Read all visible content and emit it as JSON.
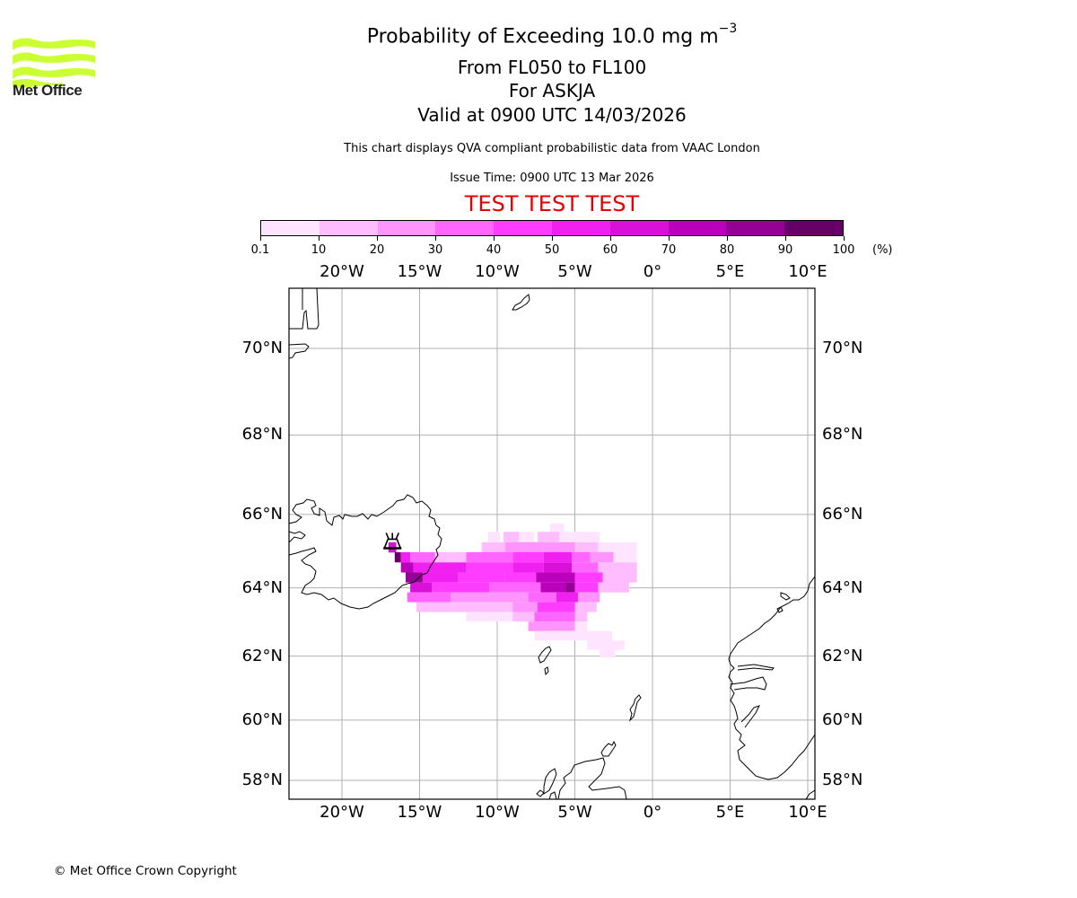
{
  "header": {
    "title_prefix": "Probability of Exceeding 10.0 mg m",
    "title_superscript": "−3",
    "flight_levels": "From FL050 to FL100",
    "volcano": "For ASKJA",
    "valid_time": "Valid at 0900 UTC 14/03/2026",
    "subtitle": "This chart displays QVA compliant probabilistic data from VAAC London",
    "issue_time": "Issue Time: 0900 UTC 13 Mar 2026",
    "test_banner": "TEST TEST TEST",
    "test_color": "#e60000"
  },
  "logo": {
    "text": "Met Office",
    "icon": "met-office-waves-logo",
    "color": "#ccff33"
  },
  "colorbar": {
    "unit": "(%)",
    "tick_labels": [
      "0.1",
      "10",
      "20",
      "30",
      "40",
      "50",
      "60",
      "70",
      "80",
      "90",
      "100"
    ],
    "colors": [
      "#ffe4ff",
      "#ffbcff",
      "#ff94ff",
      "#ff66ff",
      "#ff3cff",
      "#f020f0",
      "#d810d8",
      "#bb00bb",
      "#950095",
      "#660066"
    ]
  },
  "map": {
    "projection": "mercator",
    "lon_range": [
      -23.5,
      10.5
    ],
    "lat_range": [
      57.4,
      71.3
    ],
    "gridlines": true,
    "lon_ticks": [
      {
        "lon": -20,
        "label": "20°W"
      },
      {
        "lon": -15,
        "label": "15°W"
      },
      {
        "lon": -10,
        "label": "10°W"
      },
      {
        "lon": -5,
        "label": "5°W"
      },
      {
        "lon": 0,
        "label": "0°"
      },
      {
        "lon": 5,
        "label": "5°E"
      },
      {
        "lon": 10,
        "label": "10°E"
      }
    ],
    "lat_ticks": [
      {
        "lat": 70,
        "label": "70°N"
      },
      {
        "lat": 68,
        "label": "68°N"
      },
      {
        "lat": 66,
        "label": "66°N"
      },
      {
        "lat": 64,
        "label": "64°N"
      },
      {
        "lat": 62,
        "label": "62°N"
      },
      {
        "lat": 60,
        "label": "60°N"
      },
      {
        "lat": 58,
        "label": "58°N"
      }
    ],
    "volcano": {
      "name": "ASKJA",
      "lon": -16.75,
      "lat": 65.05,
      "icon": "volcano-icon"
    },
    "plume_cell_height_deg": 0.28,
    "plume_rows": [
      {
        "lat": 65.62,
        "runs": [
          [
            -6.6,
            -5.7,
            5
          ]
        ]
      },
      {
        "lat": 65.4,
        "runs": [
          [
            -10.6,
            -9.8,
            5
          ],
          [
            -9.6,
            -8.6,
            15
          ],
          [
            -8.6,
            -7.6,
            5
          ],
          [
            -7.4,
            -6.0,
            15
          ],
          [
            -6.0,
            -5.2,
            5
          ],
          [
            -5.2,
            -3.4,
            5
          ]
        ]
      },
      {
        "lat": 65.12,
        "runs": [
          [
            -17.0,
            -16.5,
            65
          ],
          [
            -11.0,
            -9.5,
            15
          ],
          [
            -9.5,
            -7.0,
            20
          ],
          [
            -7.0,
            -5.0,
            25
          ],
          [
            -5.0,
            -3.5,
            15
          ],
          [
            -3.5,
            -1.0,
            5
          ]
        ]
      },
      {
        "lat": 64.85,
        "runs": [
          [
            -16.6,
            -16.2,
            95
          ],
          [
            -16.2,
            -15.6,
            55
          ],
          [
            -15.6,
            -14.0,
            35
          ],
          [
            -14.0,
            -12.0,
            15
          ],
          [
            -12.0,
            -9.0,
            35
          ],
          [
            -9.0,
            -7.0,
            45
          ],
          [
            -7.0,
            -5.2,
            55
          ],
          [
            -5.2,
            -4.0,
            35
          ],
          [
            -4.0,
            -2.5,
            25
          ],
          [
            -2.5,
            -1.0,
            5
          ]
        ]
      },
      {
        "lat": 64.57,
        "runs": [
          [
            -16.2,
            -15.4,
            75
          ],
          [
            -15.4,
            -12.0,
            55
          ],
          [
            -12.0,
            -9.0,
            45
          ],
          [
            -9.0,
            -7.0,
            55
          ],
          [
            -7.0,
            -5.2,
            65
          ],
          [
            -5.2,
            -3.5,
            35
          ],
          [
            -3.5,
            -1.0,
            15
          ]
        ]
      },
      {
        "lat": 64.29,
        "runs": [
          [
            -15.9,
            -14.8,
            85
          ],
          [
            -14.8,
            -12.5,
            55
          ],
          [
            -12.5,
            -9.5,
            45
          ],
          [
            -9.5,
            -7.5,
            45
          ],
          [
            -7.5,
            -5.0,
            75
          ],
          [
            -5.0,
            -3.2,
            45
          ],
          [
            -3.2,
            -1.0,
            15
          ]
        ]
      },
      {
        "lat": 64.01,
        "runs": [
          [
            -15.6,
            -14.2,
            65
          ],
          [
            -14.2,
            -10.5,
            45
          ],
          [
            -10.5,
            -7.2,
            35
          ],
          [
            -7.2,
            -5.6,
            75
          ],
          [
            -5.6,
            -5.0,
            85
          ],
          [
            -5.0,
            -3.5,
            45
          ],
          [
            -3.5,
            -1.5,
            15
          ]
        ]
      },
      {
        "lat": 63.73,
        "runs": [
          [
            -15.8,
            -13.0,
            35
          ],
          [
            -13.0,
            -8.0,
            25
          ],
          [
            -8.0,
            -6.2,
            35
          ],
          [
            -6.2,
            -4.8,
            55
          ],
          [
            -4.8,
            -3.4,
            25
          ]
        ]
      },
      {
        "lat": 63.45,
        "runs": [
          [
            -15.2,
            -13.0,
            15
          ],
          [
            -13.0,
            -9.0,
            15
          ],
          [
            -9.0,
            -7.4,
            25
          ],
          [
            -7.4,
            -5.0,
            45
          ],
          [
            -5.0,
            -3.6,
            15
          ]
        ]
      },
      {
        "lat": 63.17,
        "runs": [
          [
            -12.0,
            -9.0,
            5
          ],
          [
            -9.0,
            -7.6,
            15
          ],
          [
            -7.6,
            -5.0,
            30
          ],
          [
            -5.0,
            -4.2,
            15
          ]
        ]
      },
      {
        "lat": 62.89,
        "runs": [
          [
            -8.0,
            -5.0,
            20
          ],
          [
            -5.0,
            -4.2,
            5
          ]
        ]
      },
      {
        "lat": 62.61,
        "runs": [
          [
            -7.6,
            -4.4,
            5
          ],
          [
            -4.4,
            -2.6,
            5
          ]
        ]
      },
      {
        "lat": 62.33,
        "runs": [
          [
            -4.2,
            -1.8,
            5
          ]
        ]
      },
      {
        "lat": 62.1,
        "runs": [
          [
            -3.4,
            -2.4,
            5
          ]
        ]
      }
    ]
  },
  "footer": {
    "copyright": "© Met Office Crown Copyright"
  }
}
